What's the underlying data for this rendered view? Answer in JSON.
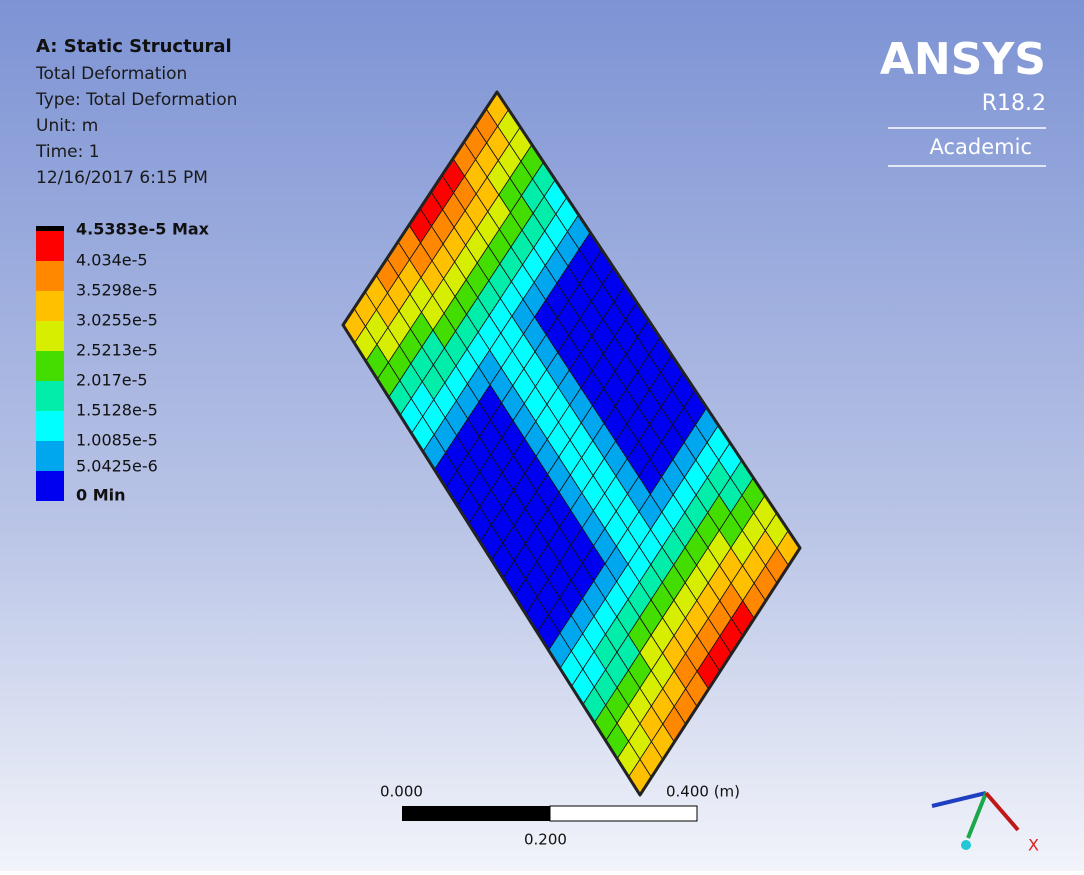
{
  "header": {
    "title": "A: Static Structural",
    "lines": [
      "Total Deformation",
      "Type: Total Deformation",
      "Unit: m",
      "Time: 1",
      "12/16/2017 6:15 PM"
    ]
  },
  "legend": {
    "labels": [
      "4.5383e-5 Max",
      "4.034e-5",
      "3.5298e-5",
      "3.0255e-5",
      "2.5213e-5",
      "2.017e-5",
      "1.5128e-5",
      "1.0085e-5",
      "5.0425e-6",
      "0 Min"
    ]
  },
  "logo": {
    "brand": "ANSYS",
    "version": "R18.2",
    "edition": "Academic"
  },
  "scale_bar": {
    "start": "0.000",
    "end": "0.400 (m)",
    "middle": "0.200"
  },
  "triad": {
    "x": "X"
  }
}
